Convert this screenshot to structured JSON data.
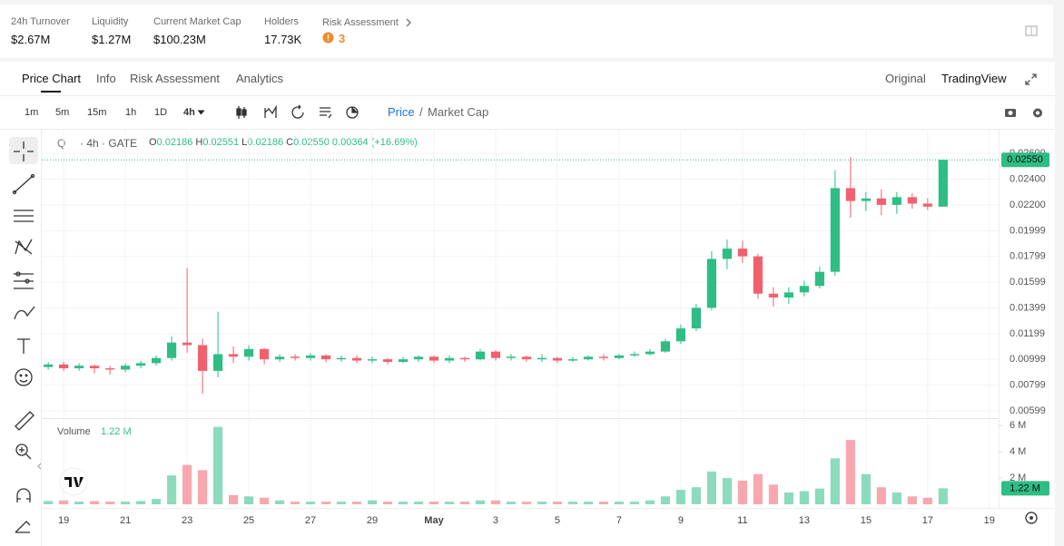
{
  "stats": [
    {
      "label": "24h Turnover",
      "value": "$2.67M"
    },
    {
      "label": "Liquidity",
      "value": "$1.27M"
    },
    {
      "label": "Current Market Cap",
      "value": "$100.23M"
    },
    {
      "label": "Holders",
      "value": "17.73K"
    }
  ],
  "risk": {
    "label": "Risk Assessment",
    "score": 3
  },
  "tabs": [
    "Price Chart",
    "Info",
    "Risk Assessment",
    "Analytics"
  ],
  "view_modes": [
    "Original",
    "TradingView"
  ],
  "intervals": [
    "1m",
    "5m",
    "15m",
    "1h",
    "1D",
    "4h"
  ],
  "price_toggle": {
    "active": "Price",
    "separator": "/",
    "other": "Market Cap"
  },
  "legend": {
    "symbol": "Q",
    "source": "· 4h · GATE",
    "ohlc": [
      {
        "label": "O",
        "value": "0.02186"
      },
      {
        "label": "H",
        "value": "0.02551"
      },
      {
        "label": "L",
        "value": "0.02186"
      },
      {
        "label": "C",
        "value": "0.02550"
      }
    ],
    "change": "0.00364 (+16.69%)",
    "volume_label": "Volume",
    "volume_value": "1.22 M"
  },
  "chart_data": {
    "type": "candlestick",
    "up_color": "#2ebd85",
    "down_color": "#f0616d",
    "x": [
      -0.5,
      0,
      0.5,
      1,
      1.5,
      2,
      2.5,
      3,
      3.5,
      4,
      4.5,
      5,
      5.5,
      6,
      6.5,
      7,
      7.5,
      8,
      8.5,
      9,
      9.5,
      10,
      10.5,
      11,
      11.5,
      12,
      12.5,
      13,
      13.5,
      14,
      14.5,
      15,
      15.5,
      16,
      16.5,
      17,
      17.5,
      18,
      18.5,
      19,
      19.5,
      20,
      20.5,
      21,
      21.5,
      22,
      22.5,
      23,
      23.5,
      24,
      24.5,
      25,
      25.5,
      26,
      26.5,
      27,
      27.5,
      28,
      28.5
    ],
    "open": [
      0.0094,
      0.0096,
      0.0093,
      0.0095,
      0.0093,
      0.0092,
      0.0095,
      0.0097,
      0.0101,
      0.0113,
      0.0111,
      0.0091,
      0.0104,
      0.0102,
      0.0108,
      0.01,
      0.0102,
      0.0101,
      0.0103,
      0.01,
      0.0101,
      0.0099,
      0.01,
      0.0098,
      0.01,
      0.0102,
      0.0099,
      0.0101,
      0.01,
      0.0106,
      0.0101,
      0.0102,
      0.01,
      0.0101,
      0.0099,
      0.01,
      0.0102,
      0.0101,
      0.0103,
      0.0104,
      0.0106,
      0.0114,
      0.0124,
      0.014,
      0.0178,
      0.0186,
      0.018,
      0.0151,
      0.0148,
      0.0152,
      0.0157,
      0.0168,
      0.0233,
      0.0223,
      0.0225,
      0.022,
      0.0226,
      0.0221,
      0.02186
    ],
    "high": [
      0.0098,
      0.0098,
      0.0097,
      0.0096,
      0.0095,
      0.0097,
      0.0099,
      0.0103,
      0.0118,
      0.0171,
      0.0116,
      0.0137,
      0.011,
      0.0111,
      0.0109,
      0.0104,
      0.0104,
      0.0105,
      0.0104,
      0.0103,
      0.0103,
      0.0102,
      0.0101,
      0.0102,
      0.0103,
      0.0103,
      0.0103,
      0.0102,
      0.0108,
      0.0107,
      0.0104,
      0.0103,
      0.0104,
      0.0102,
      0.0102,
      0.0103,
      0.0104,
      0.0104,
      0.0106,
      0.0108,
      0.0116,
      0.0127,
      0.0143,
      0.0184,
      0.0193,
      0.0192,
      0.0182,
      0.0156,
      0.0156,
      0.0161,
      0.0172,
      0.0247,
      0.0257,
      0.023,
      0.0232,
      0.023,
      0.0229,
      0.0225,
      0.02551
    ],
    "low": [
      0.0092,
      0.0091,
      0.0091,
      0.0089,
      0.0088,
      0.009,
      0.0093,
      0.0095,
      0.0099,
      0.0105,
      0.0073,
      0.0086,
      0.0097,
      0.0099,
      0.0096,
      0.0098,
      0.0099,
      0.0099,
      0.0098,
      0.0098,
      0.0097,
      0.0097,
      0.0096,
      0.0097,
      0.0098,
      0.0097,
      0.0097,
      0.0098,
      0.0099,
      0.0099,
      0.0099,
      0.0098,
      0.0098,
      0.0097,
      0.0098,
      0.0099,
      0.0099,
      0.01,
      0.0102,
      0.0103,
      0.0105,
      0.0112,
      0.0122,
      0.0138,
      0.017,
      0.0175,
      0.0147,
      0.0141,
      0.0143,
      0.0149,
      0.0155,
      0.0165,
      0.021,
      0.0215,
      0.0212,
      0.0213,
      0.0217,
      0.0216,
      0.02186
    ],
    "close": [
      0.0096,
      0.0093,
      0.0095,
      0.0093,
      0.0092,
      0.0095,
      0.0097,
      0.0101,
      0.0113,
      0.0111,
      0.0091,
      0.0104,
      0.0102,
      0.0108,
      0.01,
      0.0102,
      0.0101,
      0.0103,
      0.01,
      0.0101,
      0.0099,
      0.01,
      0.0098,
      0.01,
      0.0102,
      0.0099,
      0.0101,
      0.01,
      0.0106,
      0.0101,
      0.0102,
      0.01,
      0.0101,
      0.0099,
      0.01,
      0.0102,
      0.0101,
      0.0103,
      0.0104,
      0.0106,
      0.0114,
      0.0124,
      0.014,
      0.0178,
      0.0186,
      0.018,
      0.0151,
      0.0148,
      0.0152,
      0.0157,
      0.0168,
      0.0233,
      0.0223,
      0.0225,
      0.022,
      0.0226,
      0.0221,
      0.02186,
      0.0255
    ],
    "volume": [
      250000,
      300000,
      200000,
      250000,
      200000,
      200000,
      250000,
      400000,
      2200000,
      3000000,
      2600000,
      5900000,
      700000,
      600000,
      500000,
      300000,
      200000,
      200000,
      200000,
      200000,
      200000,
      300000,
      200000,
      200000,
      200000,
      200000,
      200000,
      200000,
      300000,
      300000,
      200000,
      200000,
      200000,
      200000,
      200000,
      200000,
      200000,
      200000,
      200000,
      300000,
      600000,
      1100000,
      1300000,
      2500000,
      2000000,
      1800000,
      2300000,
      1500000,
      900000,
      1000000,
      1200000,
      3500000,
      4900000,
      2300000,
      1300000,
      900000,
      600000,
      500000,
      1220000
    ],
    "xlim": [
      -0.71,
      30.3
    ],
    "xticks": [
      {
        "value": 0,
        "label": "19"
      },
      {
        "value": 2,
        "label": "21"
      },
      {
        "value": 4,
        "label": "23"
      },
      {
        "value": 6,
        "label": "25"
      },
      {
        "value": 8,
        "label": "27"
      },
      {
        "value": 10,
        "label": "29"
      },
      {
        "value": 12,
        "label": "May"
      },
      {
        "value": 14,
        "label": "3"
      },
      {
        "value": 16,
        "label": "5"
      },
      {
        "value": 18,
        "label": "7"
      },
      {
        "value": 20,
        "label": "9"
      },
      {
        "value": 22,
        "label": "11"
      },
      {
        "value": 24,
        "label": "13"
      },
      {
        "value": 26,
        "label": "15"
      },
      {
        "value": 28,
        "label": "17"
      },
      {
        "value": 30,
        "label": "19"
      }
    ],
    "ylim": [
      0.0055,
      0.0277
    ],
    "yticks": [
      0.00599,
      0.00799,
      0.00999,
      0.01199,
      0.01399,
      0.01599,
      0.01799,
      0.01999,
      {
        "value": 0.022,
        "label": "0.02200"
      },
      {
        "value": 0.024,
        "label": "0.02400"
      },
      {
        "value": 0.026,
        "label": "0.02600"
      }
    ],
    "y2lim": [
      0,
      6500000
    ],
    "y2ticks": [
      {
        "value": 2000000,
        "label": "2 M"
      },
      {
        "value": 4000000,
        "label": "4 M"
      },
      {
        "value": 6000000,
        "label": "6 M"
      }
    ],
    "price_line": {
      "value": 0.0255,
      "label": "0.02550"
    },
    "volume_line_label": "1.22 M",
    "grid": true
  }
}
